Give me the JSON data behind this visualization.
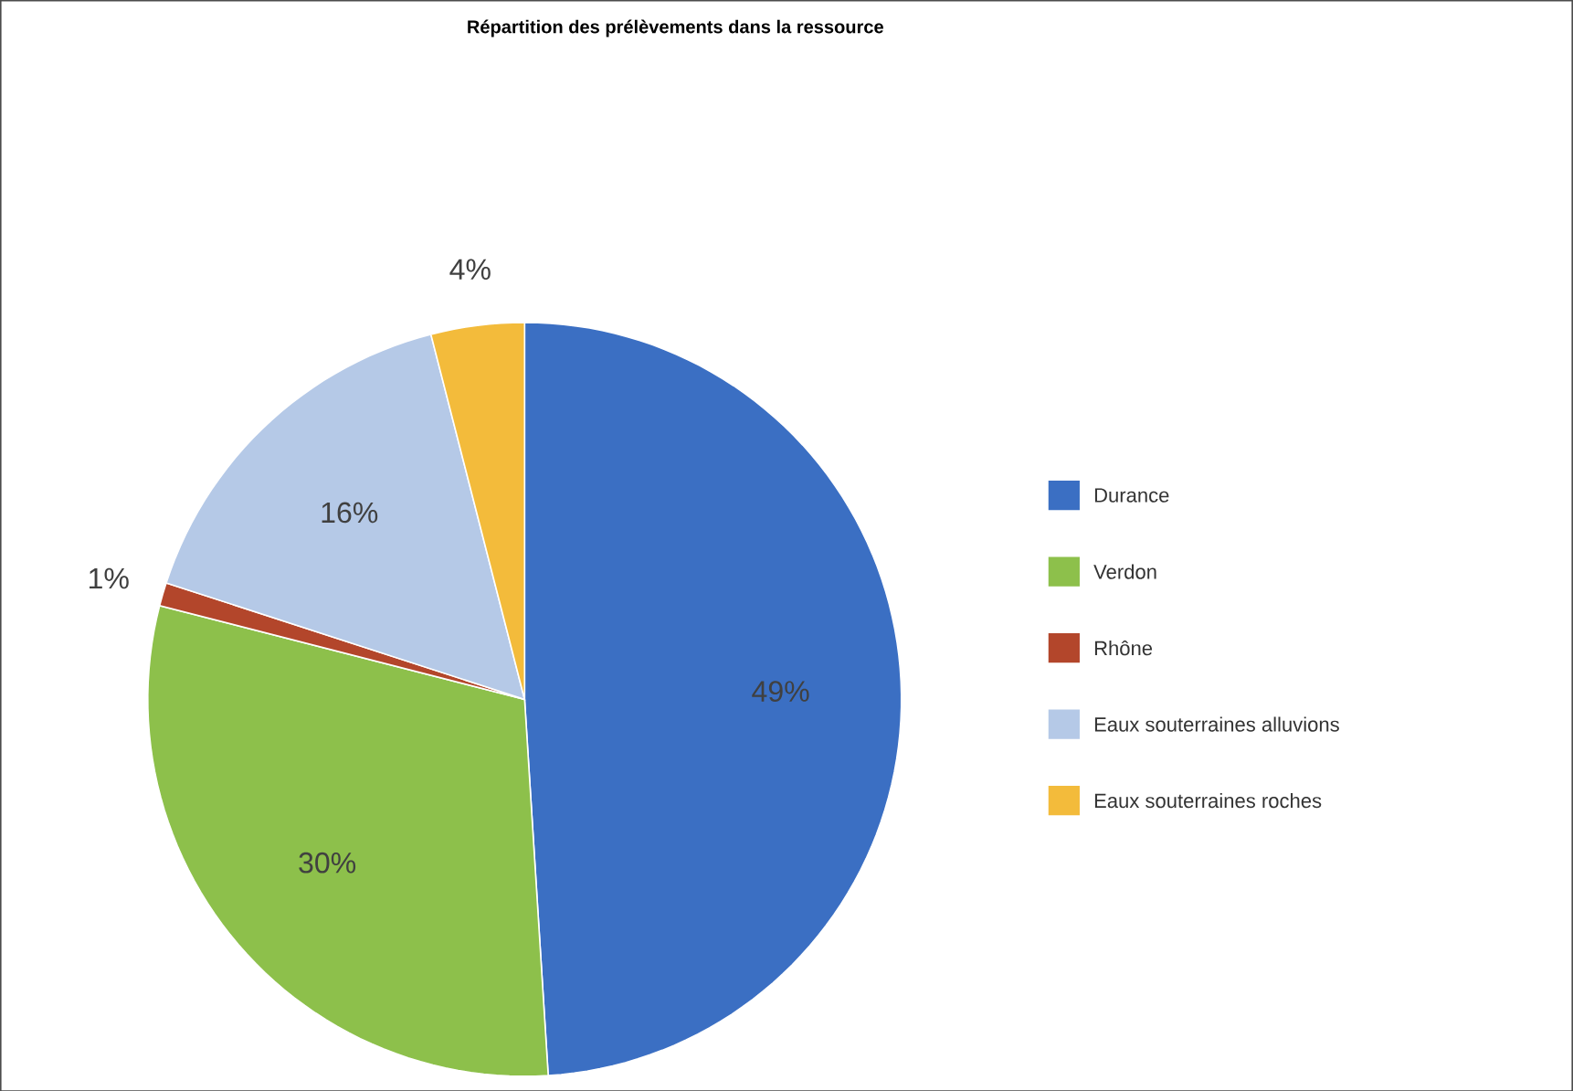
{
  "chart_data": {
    "type": "pie",
    "title": "Répartition des prélèvements dans la ressource",
    "categories": [
      "Durance",
      "Verdon",
      "Rhône",
      "Eaux souterraines alluvions",
      "Eaux souterraines roches"
    ],
    "values": [
      49,
      30,
      1,
      16,
      4
    ],
    "colors": [
      "#3b6fc3",
      "#8dc04b",
      "#b3462b",
      "#b5c9e7",
      "#f3bb3b"
    ],
    "value_labels": [
      "49%",
      "30%",
      "1%",
      "16%",
      "4%"
    ],
    "legend": "right"
  }
}
